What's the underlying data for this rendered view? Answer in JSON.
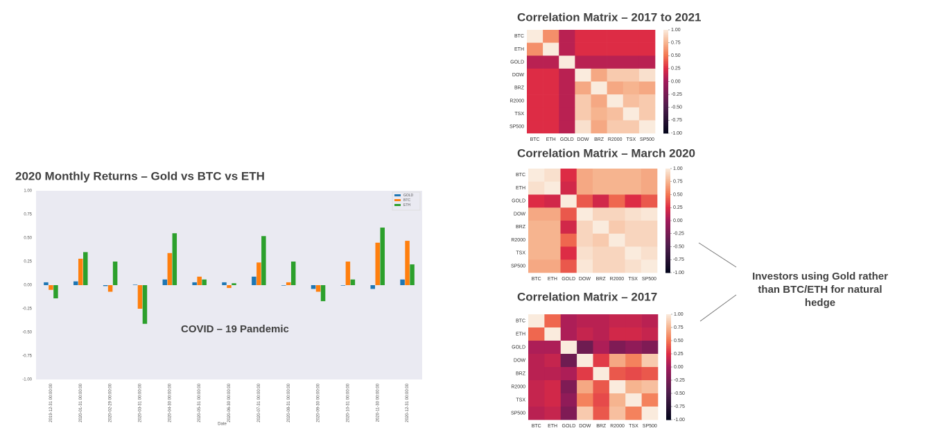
{
  "chart_data": [
    {
      "type": "bar",
      "title": "2020 Monthly Returns – Gold vs BTC vs ETH",
      "x_label": "Date",
      "categories": [
        "2019-12-31 00:00:00",
        "2020-01-31 00:00:00",
        "2020-02-29 00:00:00",
        "2020-03-31 00:00:00",
        "2020-04-30 00:00:00",
        "2020-05-31 00:00:00",
        "2020-06-30 00:00:00",
        "2020-07-31 00:00:00",
        "2020-08-31 00:00:00",
        "2020-09-30 00:00:00",
        "2020-10-31 00:00:00",
        "2020-11-30 00:00:00",
        "2020-12-31 00:00:00"
      ],
      "series": [
        {
          "name": "GOLD",
          "color": "#1f77b4",
          "values": [
            0.03,
            0.04,
            -0.01,
            0.005,
            0.06,
            0.03,
            0.03,
            0.09,
            -0.005,
            -0.04,
            -0.005,
            -0.04,
            0.06
          ]
        },
        {
          "name": "BTC",
          "color": "#ff7f0e",
          "values": [
            -0.05,
            0.28,
            -0.07,
            -0.25,
            0.34,
            0.09,
            -0.03,
            0.24,
            0.03,
            -0.07,
            0.25,
            0.45,
            0.47
          ]
        },
        {
          "name": "ETH",
          "color": "#2ca02c",
          "values": [
            -0.14,
            0.35,
            0.25,
            -0.41,
            0.55,
            0.06,
            0.02,
            0.52,
            0.25,
            -0.17,
            0.06,
            0.61,
            0.22
          ]
        }
      ],
      "ylim": [
        -1,
        1
      ],
      "yticks": [
        {
          "value": -1,
          "label": "-1.00"
        },
        {
          "value": -0.75,
          "label": "-0.75"
        },
        {
          "value": -0.5,
          "label": "-0.50"
        },
        {
          "value": -0.25,
          "label": "-0.25"
        },
        {
          "value": 0,
          "label": "0.00"
        },
        {
          "value": 0.25,
          "label": "0.25"
        },
        {
          "value": 0.5,
          "label": "0.50"
        },
        {
          "value": 0.75,
          "label": "0.75"
        },
        {
          "value": 1,
          "label": "1.00"
        }
      ],
      "grid": false,
      "legend": "upper right",
      "annotation": "COVID – 19 Pandemic"
    },
    {
      "type": "heatmap",
      "title": "Correlation Matrix – 2017 to 2021",
      "x_labels": [
        "BTC",
        "ETH",
        "GOLD",
        "DOW",
        "BRZ",
        "R2000",
        "TSX",
        "SP500"
      ],
      "y_labels": [
        "BTC",
        "ETH",
        "GOLD",
        "DOW",
        "BRZ",
        "R2000",
        "TSX",
        "SP500"
      ],
      "values": [
        [
          1,
          0.6,
          0.1,
          0.25,
          0.25,
          0.25,
          0.25,
          0.25
        ],
        [
          0.6,
          1,
          0.1,
          0.25,
          0.25,
          0.25,
          0.25,
          0.25
        ],
        [
          0.1,
          0.1,
          1,
          0.1,
          0.1,
          0.1,
          0.1,
          0.1
        ],
        [
          0.25,
          0.25,
          0.1,
          1,
          0.7,
          0.85,
          0.85,
          0.95
        ],
        [
          0.25,
          0.25,
          0.1,
          0.7,
          1,
          0.7,
          0.75,
          0.7
        ],
        [
          0.25,
          0.25,
          0.1,
          0.85,
          0.7,
          1,
          0.8,
          0.85
        ],
        [
          0.25,
          0.25,
          0.1,
          0.85,
          0.75,
          0.8,
          1,
          0.85
        ],
        [
          0.25,
          0.25,
          0.1,
          0.95,
          0.7,
          0.85,
          0.85,
          1
        ]
      ],
      "clim": [
        -1,
        1
      ],
      "colorbar_ticks": [
        {
          "value": 1,
          "label": "1.00"
        },
        {
          "value": 0.75,
          "label": "0.75"
        },
        {
          "value": 0.5,
          "label": "0.50"
        },
        {
          "value": 0.25,
          "label": "0.25"
        },
        {
          "value": 0,
          "label": "0.00"
        },
        {
          "value": -0.25,
          "label": "-0.25"
        },
        {
          "value": -0.5,
          "label": "-0.50"
        },
        {
          "value": -0.75,
          "label": "-0.75"
        },
        {
          "value": -1,
          "label": "-1.00"
        }
      ]
    },
    {
      "type": "heatmap",
      "title": "Correlation Matrix – March 2020",
      "x_labels": [
        "BTC",
        "ETH",
        "GOLD",
        "DOW",
        "BRZ",
        "R2000",
        "TSX",
        "SP500"
      ],
      "y_labels": [
        "BTC",
        "ETH",
        "GOLD",
        "DOW",
        "BRZ",
        "R2000",
        "TSX",
        "SP500"
      ],
      "values": [
        [
          1,
          0.95,
          0.25,
          0.7,
          0.75,
          0.75,
          0.75,
          0.7
        ],
        [
          0.95,
          1,
          0.2,
          0.7,
          0.75,
          0.75,
          0.75,
          0.7
        ],
        [
          0.25,
          0.2,
          1,
          0.4,
          0.2,
          0.45,
          0.25,
          0.4
        ],
        [
          0.7,
          0.7,
          0.4,
          1,
          0.9,
          0.9,
          0.95,
          0.98
        ],
        [
          0.75,
          0.75,
          0.2,
          0.9,
          1,
          0.85,
          0.9,
          0.9
        ],
        [
          0.75,
          0.75,
          0.45,
          0.9,
          0.85,
          1,
          0.9,
          0.9
        ],
        [
          0.75,
          0.75,
          0.25,
          0.95,
          0.9,
          0.9,
          1,
          0.95
        ],
        [
          0.7,
          0.7,
          0.4,
          0.98,
          0.9,
          0.9,
          0.95,
          1
        ]
      ],
      "clim": [
        -1,
        1
      ],
      "colorbar_ticks": [
        {
          "value": 1,
          "label": "1.00"
        },
        {
          "value": 0.75,
          "label": "0.75"
        },
        {
          "value": 0.5,
          "label": "0.50"
        },
        {
          "value": 0.25,
          "label": "0.25"
        },
        {
          "value": 0,
          "label": "0.00"
        },
        {
          "value": -0.25,
          "label": "-0.25"
        },
        {
          "value": -0.5,
          "label": "-0.50"
        },
        {
          "value": -0.75,
          "label": "-0.75"
        },
        {
          "value": -1,
          "label": "-1.00"
        }
      ]
    },
    {
      "type": "heatmap",
      "title": "Correlation Matrix – 2017",
      "x_labels": [
        "BTC",
        "ETH",
        "GOLD",
        "DOW",
        "BRZ",
        "R2000",
        "TSX",
        "SP500"
      ],
      "y_labels": [
        "BTC",
        "ETH",
        "GOLD",
        "DOW",
        "BRZ",
        "R2000",
        "TSX",
        "SP500"
      ],
      "values": [
        [
          1,
          0.45,
          0.05,
          0.1,
          0.1,
          0.15,
          0.15,
          0.1
        ],
        [
          0.45,
          1,
          0.05,
          0.15,
          0.1,
          0.2,
          0.2,
          0.15
        ],
        [
          0.05,
          0.05,
          1,
          -0.3,
          0.05,
          -0.2,
          -0.1,
          -0.2
        ],
        [
          0.1,
          0.15,
          -0.3,
          1,
          0.3,
          0.7,
          0.55,
          0.85
        ],
        [
          0.1,
          0.1,
          0.05,
          0.3,
          1,
          0.4,
          0.35,
          0.4
        ],
        [
          0.15,
          0.2,
          -0.2,
          0.7,
          0.4,
          1,
          0.75,
          0.8
        ],
        [
          0.15,
          0.2,
          -0.1,
          0.55,
          0.35,
          0.75,
          1,
          0.55
        ],
        [
          0.1,
          0.15,
          -0.2,
          0.85,
          0.4,
          0.8,
          0.55,
          1
        ]
      ],
      "clim": [
        -1,
        1
      ],
      "colorbar_ticks": [
        {
          "value": 1,
          "label": "1.00"
        },
        {
          "value": 0.75,
          "label": "0.75"
        },
        {
          "value": 0.5,
          "label": "0.50"
        },
        {
          "value": 0.25,
          "label": "0.25"
        },
        {
          "value": 0,
          "label": "0.00"
        },
        {
          "value": -0.25,
          "label": "-0.25"
        },
        {
          "value": -0.5,
          "label": "-0.50"
        },
        {
          "value": -0.75,
          "label": "-0.75"
        },
        {
          "value": -1,
          "label": "-1.00"
        }
      ]
    }
  ],
  "callout": [
    "Investors using Gold rather",
    "than BTC/ETH for natural",
    "hedge"
  ]
}
